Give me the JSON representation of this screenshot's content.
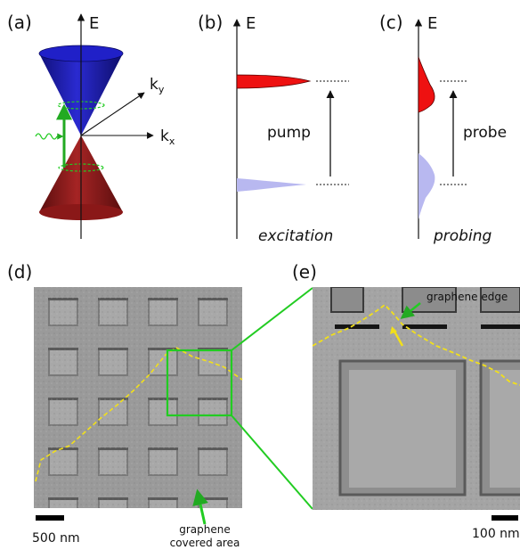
{
  "panels": {
    "a": {
      "label": "(a)",
      "e_axis": "E",
      "ky": "k",
      "ky_sub": "y",
      "kx": "k",
      "kx_sub": "x"
    },
    "b": {
      "label": "(b)",
      "e_axis": "E",
      "arrow_text": "pump",
      "caption": "excitation"
    },
    "c": {
      "label": "(c)",
      "e_axis": "E",
      "arrow_text": "probe",
      "caption": "probing"
    },
    "d": {
      "label": "(d)",
      "scale": "500 nm",
      "annotation_line1": "graphene",
      "annotation_line2": "covered area"
    },
    "e": {
      "label": "(e)",
      "annotation": "graphene edge",
      "scale": "100 nm"
    }
  },
  "colors": {
    "upper_cone": "#1f1fb0",
    "lower_cone": "#8b1a1a",
    "excited": "#ee1111",
    "valence": "#b8b8f0",
    "green": "#22cc22",
    "edge_trace": "#f2e01a"
  }
}
